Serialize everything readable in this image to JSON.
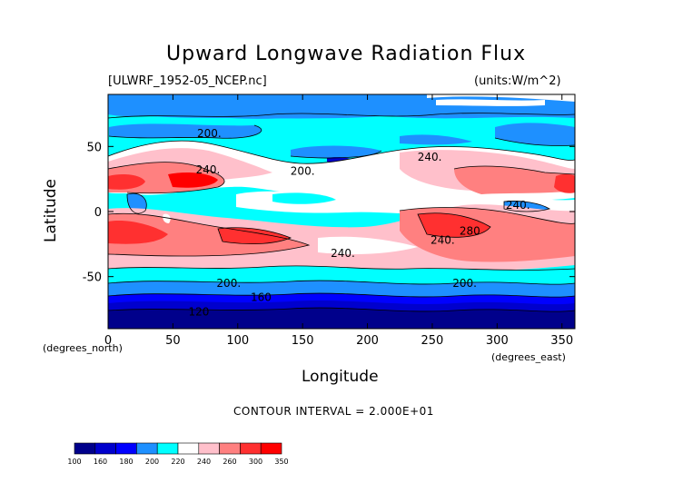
{
  "chart_data": {
    "type": "heatmap",
    "title": "Upward Longwave Radiation Flux",
    "subtitle_left": "[ULWRF_1952-05_NCEP.nc]",
    "subtitle_right": "(units:W/m^2)",
    "xlabel": "Longitude",
    "ylabel": "Latitude",
    "x_unit_label": "(degrees_east)",
    "y_unit_label": "(degrees_north)",
    "xlim": [
      0,
      360
    ],
    "ylim": [
      -90,
      90
    ],
    "x_ticks": [
      0,
      50,
      100,
      150,
      200,
      250,
      300,
      350
    ],
    "y_ticks": [
      50,
      0,
      -50
    ],
    "contour_interval_text": "CONTOUR INTERVAL = 2.000E+01",
    "contour_labels": [
      {
        "text": "200.",
        "lon": 78,
        "lat": 60
      },
      {
        "text": "240.",
        "lon": 77,
        "lat": 32
      },
      {
        "text": "200.",
        "lon": 150,
        "lat": 31
      },
      {
        "text": "240.",
        "lon": 248,
        "lat": 42
      },
      {
        "text": "240.",
        "lon": 316,
        "lat": 5
      },
      {
        "text": "240.",
        "lon": 258,
        "lat": -22
      },
      {
        "text": "280",
        "lon": 279,
        "lat": -15
      },
      {
        "text": "240.",
        "lon": 181,
        "lat": -32
      },
      {
        "text": "200.",
        "lon": 93,
        "lat": -55
      },
      {
        "text": "160",
        "lon": 118,
        "lat": -66
      },
      {
        "text": "120",
        "lon": 70,
        "lat": -77
      },
      {
        "text": "200.",
        "lon": 275,
        "lat": -55
      }
    ],
    "colorbar": {
      "levels": [
        "100",
        "160",
        "180",
        "200",
        "220",
        "240",
        "260",
        "300",
        "350"
      ],
      "colors": [
        "#00008b",
        "#0000cd",
        "#0000ff",
        "#1e90ff",
        "#00ffff",
        "#ffffff",
        "#ffc0cb",
        "#ff8080",
        "#ff3030",
        "#ff0000"
      ]
    }
  }
}
